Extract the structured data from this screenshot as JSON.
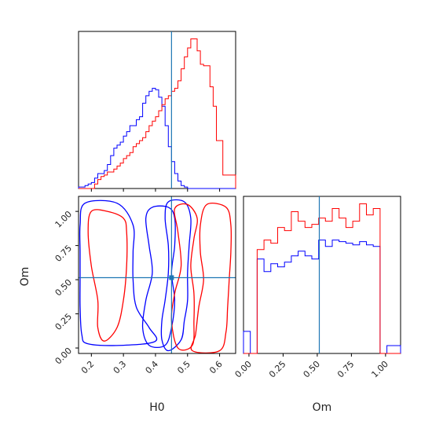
{
  "chart_data": {
    "type": "corner",
    "colors": {
      "series_a": "#0000ff",
      "series_b": "#ff0000",
      "truth": "#1f77b4"
    },
    "series_colors": [
      "#0000ff",
      "#ff0000"
    ],
    "truth": {
      "H0": 0.45,
      "Om": 0.515
    },
    "axes": {
      "H0": {
        "label": "H0",
        "range": [
          0.16,
          0.65
        ],
        "ticks": [
          0.2,
          0.3,
          0.4,
          0.5,
          0.6
        ],
        "tick_labels": [
          "0.2",
          "0.3",
          "0.4",
          "0.5",
          "0.6"
        ]
      },
      "Om": {
        "label": "Om",
        "range": [
          -0.04,
          1.11
        ],
        "ticks": [
          0.0,
          0.25,
          0.5,
          0.75,
          1.0
        ],
        "tick_labels": [
          "0.00",
          "0.25",
          "0.50",
          "0.75",
          "1.00"
        ]
      }
    },
    "hist_H0": {
      "bin_edges": [
        0.16,
        0.17,
        0.18,
        0.19,
        0.2,
        0.21,
        0.22,
        0.23,
        0.24,
        0.25,
        0.26,
        0.27,
        0.28,
        0.29,
        0.3,
        0.31,
        0.32,
        0.33,
        0.34,
        0.35,
        0.36,
        0.37,
        0.38,
        0.39,
        0.4,
        0.41,
        0.42,
        0.43,
        0.44,
        0.45,
        0.46,
        0.47,
        0.48,
        0.49,
        0.5,
        0.51,
        0.52,
        0.53,
        0.54,
        0.55,
        0.56,
        0.57,
        0.58,
        0.59,
        0.6,
        0.61,
        0.62,
        0.63,
        0.64,
        0.65
      ],
      "series": [
        {
          "values": [
            1,
            1,
            2,
            3,
            4,
            7,
            10,
            10,
            12,
            16,
            22,
            27,
            29,
            31,
            35,
            38,
            42,
            42,
            46,
            48,
            57,
            62,
            65,
            67,
            66,
            61,
            55,
            42,
            28,
            18,
            10,
            5,
            2,
            1,
            0,
            0,
            0,
            0,
            0,
            0,
            0,
            0,
            0,
            0,
            0,
            0,
            0,
            0,
            0
          ]
        },
        {
          "values": [
            0,
            0,
            0,
            0,
            0,
            3,
            6,
            8,
            9,
            11,
            11,
            13,
            15,
            17,
            20,
            22,
            24,
            28,
            30,
            32,
            34,
            38,
            42,
            45,
            48,
            52,
            56,
            60,
            62,
            65,
            67,
            72,
            80,
            88,
            94,
            100,
            100,
            92,
            83,
            82,
            82,
            68,
            55,
            32,
            32,
            9,
            9,
            9,
            9
          ]
        }
      ]
    },
    "hist_Om": {
      "bin_edges": [
        -0.04,
        0.01,
        0.06,
        0.11,
        0.16,
        0.21,
        0.26,
        0.31,
        0.36,
        0.41,
        0.46,
        0.51,
        0.56,
        0.61,
        0.66,
        0.71,
        0.76,
        0.81,
        0.86,
        0.91,
        0.96,
        1.01,
        1.06,
        1.11
      ],
      "series": [
        {
          "values": [
            14,
            0,
            60,
            52,
            57,
            55,
            58,
            62,
            65,
            62,
            60,
            72,
            68,
            72,
            71,
            70,
            69,
            71,
            69,
            68,
            0,
            5,
            5
          ]
        },
        {
          "values": [
            0,
            0,
            66,
            72,
            70,
            80,
            78,
            90,
            84,
            80,
            82,
            86,
            84,
            92,
            86,
            80,
            84,
            95,
            88,
            92,
            0,
            0,
            0
          ]
        }
      ]
    },
    "contours_2d": [
      {
        "levels": [
          [
            [
              0.44,
              -0.02
            ],
            [
              0.48,
              0.06
            ],
            [
              0.49,
              0.2
            ],
            [
              0.5,
              0.35
            ],
            [
              0.5,
              0.55
            ],
            [
              0.505,
              0.75
            ],
            [
              0.51,
              0.95
            ],
            [
              0.49,
              1.07
            ],
            [
              0.44,
              1.07
            ],
            [
              0.43,
              0.95
            ],
            [
              0.44,
              0.75
            ],
            [
              0.44,
              0.55
            ],
            [
              0.43,
              0.35
            ],
            [
              0.42,
              0.2
            ],
            [
              0.42,
              0.06
            ]
          ],
          [
            [
              0.38,
              0.02
            ],
            [
              0.43,
              0.02
            ],
            [
              0.45,
              0.15
            ],
            [
              0.46,
              0.35
            ],
            [
              0.45,
              0.55
            ],
            [
              0.46,
              0.75
            ],
            [
              0.46,
              0.95
            ],
            [
              0.44,
              1.03
            ],
            [
              0.39,
              1.03
            ],
            [
              0.37,
              0.95
            ],
            [
              0.38,
              0.75
            ],
            [
              0.39,
              0.55
            ],
            [
              0.37,
              0.35
            ],
            [
              0.36,
              0.15
            ]
          ],
          [
            [
              0.19,
              0.03
            ],
            [
              0.3,
              0.02
            ],
            [
              0.4,
              0.05
            ],
            [
              0.38,
              0.15
            ],
            [
              0.34,
              0.3
            ],
            [
              0.33,
              0.5
            ],
            [
              0.33,
              0.7
            ],
            [
              0.33,
              0.9
            ],
            [
              0.28,
              1.06
            ],
            [
              0.18,
              1.06
            ],
            [
              0.165,
              0.9
            ],
            [
              0.165,
              0.7
            ],
            [
              0.165,
              0.5
            ],
            [
              0.165,
              0.3
            ],
            [
              0.17,
              0.1
            ]
          ]
        ]
      },
      {
        "levels": [
          [
            [
              0.515,
              -0.02
            ],
            [
              0.6,
              -0.02
            ],
            [
              0.62,
              0.12
            ],
            [
              0.625,
              0.3
            ],
            [
              0.63,
              0.5
            ],
            [
              0.635,
              0.7
            ],
            [
              0.635,
              0.9
            ],
            [
              0.62,
              1.03
            ],
            [
              0.56,
              1.05
            ],
            [
              0.54,
              0.9
            ],
            [
              0.54,
              0.7
            ],
            [
              0.55,
              0.5
            ],
            [
              0.535,
              0.3
            ],
            [
              0.525,
              0.1
            ]
          ],
          [
            [
              0.47,
              0.0
            ],
            [
              0.515,
              0.02
            ],
            [
              0.52,
              0.2
            ],
            [
              0.52,
              0.4
            ],
            [
              0.51,
              0.6
            ],
            [
              0.52,
              0.8
            ],
            [
              0.53,
              0.95
            ],
            [
              0.5,
              1.05
            ],
            [
              0.46,
              1.02
            ],
            [
              0.47,
              0.85
            ],
            [
              0.48,
              0.6
            ],
            [
              0.46,
              0.4
            ],
            [
              0.45,
              0.2
            ]
          ],
          [
            [
              0.24,
              0.05
            ],
            [
              0.28,
              0.15
            ],
            [
              0.3,
              0.35
            ],
            [
              0.31,
              0.6
            ],
            [
              0.31,
              0.85
            ],
            [
              0.3,
              0.95
            ],
            [
              0.25,
              1.0
            ],
            [
              0.2,
              1.0
            ],
            [
              0.19,
              0.85
            ],
            [
              0.2,
              0.6
            ],
            [
              0.22,
              0.35
            ],
            [
              0.22,
              0.15
            ]
          ]
        ]
      }
    ]
  }
}
